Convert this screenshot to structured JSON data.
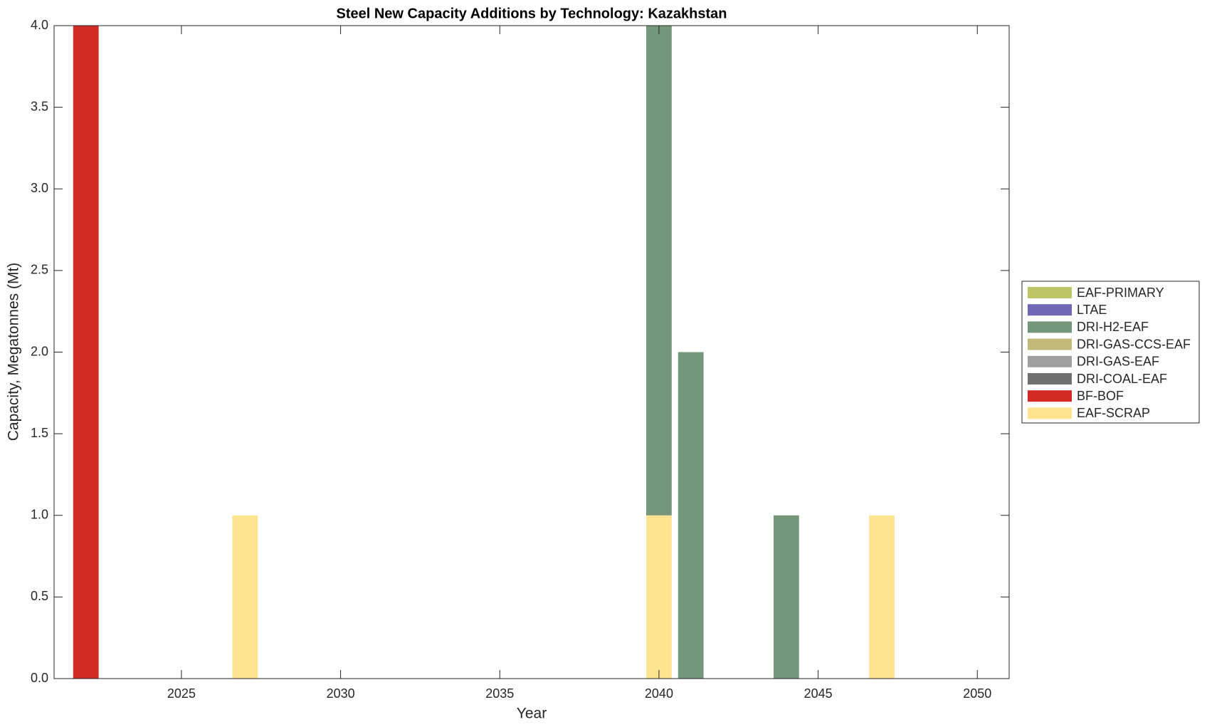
{
  "chart_data": {
    "type": "stacked-bar",
    "title": "Steel New Capacity Additions by Technology: Kazakhstan",
    "x_label": "Year",
    "y_label": "Capacity, Megatonnes (Mt)",
    "x": [
      2022,
      2023,
      2024,
      2025,
      2026,
      2027,
      2028,
      2029,
      2030,
      2031,
      2032,
      2033,
      2034,
      2035,
      2036,
      2037,
      2038,
      2039,
      2040,
      2041,
      2042,
      2043,
      2044,
      2045,
      2046,
      2047,
      2048,
      2049,
      2050
    ],
    "xlim": [
      2021,
      2051
    ],
    "xticks": [
      2025,
      2030,
      2035,
      2040,
      2045,
      2050
    ],
    "ylim": [
      0,
      4
    ],
    "yticks": [
      {
        "value": 0,
        "label": "0.0"
      },
      0.5,
      {
        "value": 1,
        "label": "1.0"
      },
      1.5,
      {
        "value": 2,
        "label": "2.0"
      },
      2.5,
      {
        "value": 3,
        "label": "3.0"
      },
      3.5,
      {
        "value": 4,
        "label": "4.0"
      }
    ],
    "legend": "outside-right",
    "series": [
      {
        "name": "EAF-PRIMARY",
        "color": "#bcc667",
        "values": [
          0,
          0,
          0,
          0,
          0,
          0,
          0,
          0,
          0,
          0,
          0,
          0,
          0,
          0,
          0,
          0,
          0,
          0,
          0,
          0,
          0,
          0,
          0,
          0,
          0,
          0,
          0,
          0,
          0
        ]
      },
      {
        "name": "LTAE",
        "color": "#7068b5",
        "values": [
          0,
          0,
          0,
          0,
          0,
          0,
          0,
          0,
          0,
          0,
          0,
          0,
          0,
          0,
          0,
          0,
          0,
          0,
          0,
          0,
          0,
          0,
          0,
          0,
          0,
          0,
          0,
          0,
          0
        ]
      },
      {
        "name": "DRI-H2-EAF",
        "color": "#74977c",
        "values": [
          0,
          0,
          0,
          0,
          0,
          0,
          0,
          0,
          0,
          0,
          0,
          0,
          0,
          0,
          0,
          0,
          0,
          0,
          3,
          2,
          0,
          0,
          1,
          0,
          0,
          0,
          0,
          0,
          0
        ]
      },
      {
        "name": "DRI-GAS-CCS-EAF",
        "color": "#c2b87a",
        "values": [
          0,
          0,
          0,
          0,
          0,
          0,
          0,
          0,
          0,
          0,
          0,
          0,
          0,
          0,
          0,
          0,
          0,
          0,
          0,
          0,
          0,
          0,
          0,
          0,
          0,
          0,
          0,
          0,
          0
        ]
      },
      {
        "name": "DRI-GAS-EAF",
        "color": "#9f9f9f",
        "values": [
          0,
          0,
          0,
          0,
          0,
          0,
          0,
          0,
          0,
          0,
          0,
          0,
          0,
          0,
          0,
          0,
          0,
          0,
          0,
          0,
          0,
          0,
          0,
          0,
          0,
          0,
          0,
          0,
          0
        ]
      },
      {
        "name": "DRI-COAL-EAF",
        "color": "#707070",
        "values": [
          0,
          0,
          0,
          0,
          0,
          0,
          0,
          0,
          0,
          0,
          0,
          0,
          0,
          0,
          0,
          0,
          0,
          0,
          0,
          0,
          0,
          0,
          0,
          0,
          0,
          0,
          0,
          0,
          0
        ]
      },
      {
        "name": "BF-BOF",
        "color": "#d22a25",
        "values": [
          4,
          0,
          0,
          0,
          0,
          0,
          0,
          0,
          0,
          0,
          0,
          0,
          0,
          0,
          0,
          0,
          0,
          0,
          0,
          0,
          0,
          0,
          0,
          0,
          0,
          0,
          0,
          0,
          0
        ]
      },
      {
        "name": "EAF-SCRAP",
        "color": "#fee391",
        "values": [
          0,
          0,
          0,
          0,
          0,
          1,
          0,
          0,
          0,
          0,
          0,
          0,
          0,
          0,
          0,
          0,
          0,
          0,
          1,
          0,
          0,
          0,
          0,
          0,
          0,
          1,
          0,
          0,
          0
        ]
      }
    ]
  }
}
